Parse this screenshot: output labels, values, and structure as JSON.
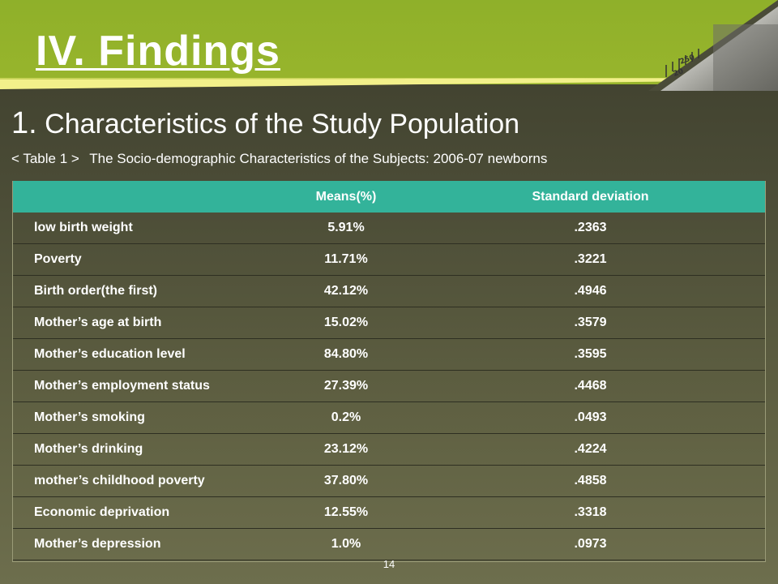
{
  "slide": {
    "title": "IV. Findings",
    "subtitle_number": "1.",
    "subtitle_text": "Characteristics of the Study Population",
    "table_label": "< Table 1 >",
    "table_caption": "The Socio-demographic Characteristics of the Subjects: 2006-07 newborns",
    "page_number": "14"
  },
  "table": {
    "headers": [
      "",
      "Means(%)",
      "Standard deviation"
    ],
    "rows": [
      {
        "label": "low birth weight",
        "mean": "5.91%",
        "sd": ".2363"
      },
      {
        "label": "Poverty",
        "mean": "11.71%",
        "sd": ".3221"
      },
      {
        "label": "Birth order(the first)",
        "mean": "42.12%",
        "sd": ".4946"
      },
      {
        "label": "Mother’s age at birth",
        "mean": "15.02%",
        "sd": ".3579"
      },
      {
        "label": "Mother’s education level",
        "mean": "84.80%",
        "sd": ".3595"
      },
      {
        "label": "Mother’s employment status",
        "mean": "27.39%",
        "sd": ".4468"
      },
      {
        "label": "Mother’s smoking",
        "mean": "0.2%",
        "sd": ".0493"
      },
      {
        "label": "Mother’s drinking",
        "mean": "23.12%",
        "sd": ".4224"
      },
      {
        "label": "mother’s childhood poverty",
        "mean": "37.80%",
        "sd": ".4858"
      },
      {
        "label": "Economic deprivation",
        "mean": "12.55%",
        "sd": ".3318"
      },
      {
        "label": "Mother’s depression",
        "mean": "1.0%",
        "sd": ".0973"
      }
    ]
  },
  "colors": {
    "header_band": "#94b22b",
    "stripe": "#f2f08a",
    "table_header": "#33b39a",
    "background": "#4c4d37"
  }
}
